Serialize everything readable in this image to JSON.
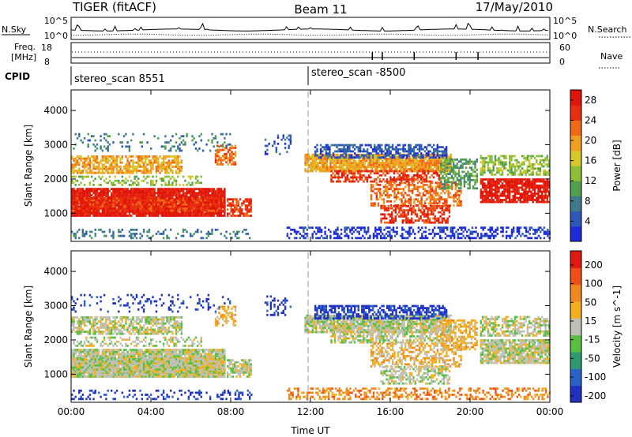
{
  "header": {
    "radar": "TIGER (fitACF)",
    "beam": "Beam 11",
    "date": "17/May/2010"
  },
  "panels": {
    "nsky": {
      "left_label": "N.Sky",
      "left_ticks": [
        "10^5",
        "10^0"
      ],
      "right_ticks": [
        "10^5",
        "10^0"
      ],
      "right_label": "N.Search"
    },
    "freq": {
      "left_label_line1": "Freq.",
      "left_label_line2": "[MHz]",
      "left_ticks": [
        "18",
        "8"
      ],
      "right_ticks": [
        "60",
        "0"
      ],
      "right_label": "Nave"
    },
    "cpid": {
      "label": "CPID",
      "scans": [
        {
          "name": "stereo_scan 8551",
          "start_hour": 0
        },
        {
          "name": "stereo_scan -8500",
          "start_hour": 12
        }
      ]
    }
  },
  "chart_data": [
    {
      "type": "heatmap",
      "ylabel": "Slant Range [km]",
      "xlabel": "",
      "x_ticks": [
        "00:00",
        "04:00",
        "08:00",
        "12:00",
        "16:00",
        "20:00",
        "00:00"
      ],
      "x_range_hours": [
        0,
        24
      ],
      "y_ticks": [
        1000,
        2000,
        3000,
        4000
      ],
      "y_range": [
        180,
        4600
      ],
      "colorbar": {
        "label": "Power [dB]",
        "ticks": [
          "4",
          "8",
          "12",
          "16",
          "20",
          "24",
          "28"
        ],
        "range": [
          0,
          30
        ],
        "colors": [
          "#1e2cd8",
          "#2d58b8",
          "#3f7a8c",
          "#50a050",
          "#8cbe3a",
          "#d6c82a",
          "#f0a020",
          "#f06a18",
          "#e83010",
          "#e01408"
        ]
      }
    },
    {
      "type": "heatmap",
      "ylabel": "Slant Range [km]",
      "xlabel": "Time UT",
      "x_ticks": [
        "00:00",
        "04:00",
        "08:00",
        "12:00",
        "16:00",
        "20:00",
        "00:00"
      ],
      "x_range_hours": [
        0,
        24
      ],
      "y_ticks": [
        1000,
        2000,
        3000,
        4000
      ],
      "y_range": [
        180,
        4600
      ],
      "colorbar": {
        "label": "Velocity [m s^-1]",
        "ticks": [
          "200",
          "100",
          "50",
          "15",
          "-15",
          "-50",
          "-100",
          "-200"
        ],
        "range": [
          -250,
          250
        ],
        "colors": [
          "#2030c0",
          "#2a62c8",
          "#2e9a70",
          "#58c040",
          "#c0c0b8",
          "#f0b020",
          "#f08820",
          "#f05018",
          "#e01a10"
        ]
      }
    }
  ]
}
